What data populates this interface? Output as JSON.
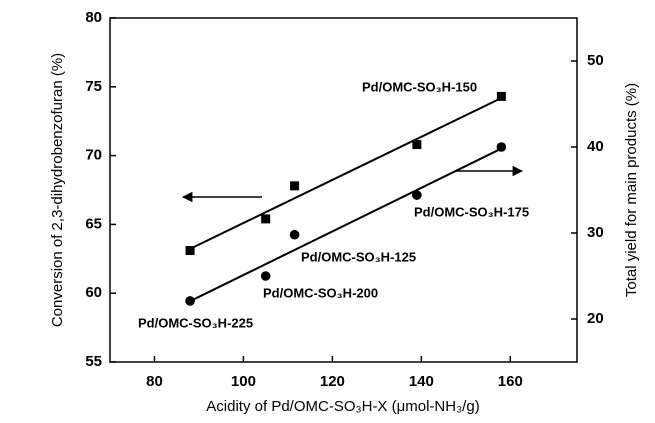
{
  "chart_data": {
    "type": "scatter",
    "xlabel": "Acidity of Pd/OMC-SO₃H-X (μmol-NH₃/g)",
    "ylabel": "Conversion of 2,3-dihydrobenzofuran (%)",
    "y2label": "Total yield for main products (%)",
    "xlim": [
      70,
      175
    ],
    "xticks": [
      80,
      100,
      120,
      140,
      160
    ],
    "ylim": [
      55,
      80
    ],
    "yticks": [
      55,
      60,
      65,
      70,
      75,
      80
    ],
    "y2lim": [
      15,
      55
    ],
    "y2ticks": [
      20,
      30,
      40,
      50
    ],
    "fit_lines": true,
    "series": [
      {
        "color": "#000000",
        "marker": "square",
        "axis": "y",
        "x": [
          88,
          105,
          111.5,
          139,
          158
        ],
        "values": [
          63.1,
          65.4,
          67.8,
          70.8,
          74.3
        ]
      },
      {
        "color": "#000000",
        "marker": "circle",
        "axis": "y2",
        "x": [
          88,
          105,
          111.5,
          139,
          158
        ],
        "values": [
          22.1,
          25.0,
          29.8,
          34.4,
          40.0
        ]
      }
    ],
    "annotations": [
      "Pd/OMC-SO₃H-150",
      "Pd/OMC-SO₃H-175",
      "Pd/OMC-SO₃H-125",
      "Pd/OMC-SO₃H-200",
      "Pd/OMC-SO₃H-225"
    ]
  }
}
